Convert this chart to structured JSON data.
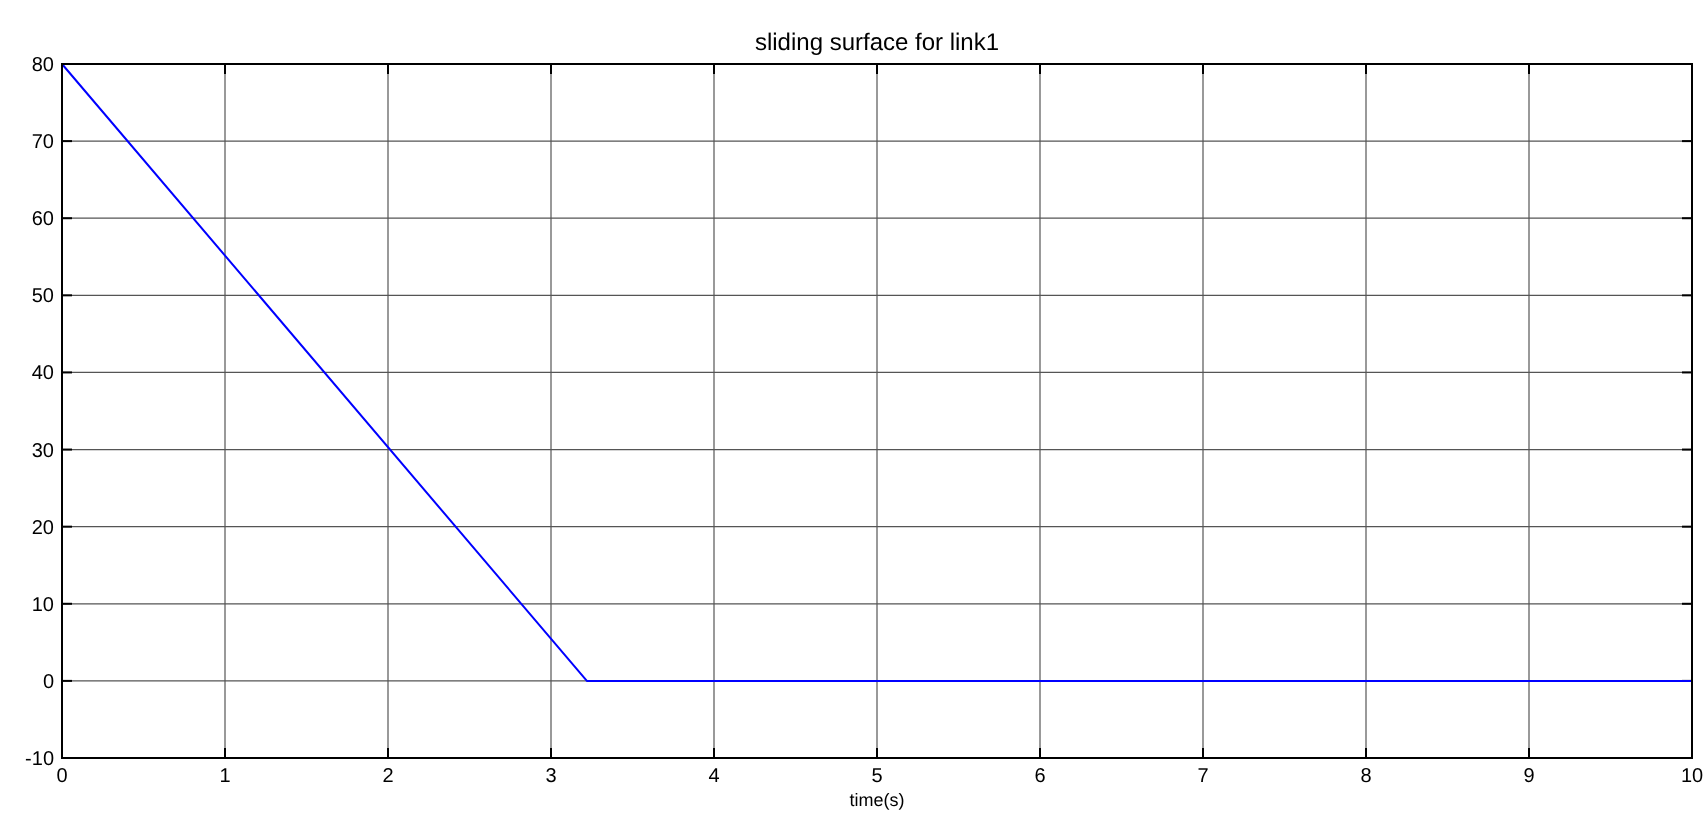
{
  "chart_data": {
    "type": "line",
    "title": "sliding surface for link1",
    "xlabel": "time(s)",
    "x": [
      0,
      3.22,
      10
    ],
    "series": [
      {
        "color": "#0000ff",
        "values": [
          80,
          0,
          0
        ]
      }
    ],
    "xlim": [
      0,
      10
    ],
    "xticks": [
      0,
      1,
      2,
      3,
      4,
      5,
      6,
      7,
      8,
      9,
      10
    ],
    "ylim": [
      -10,
      80
    ],
    "yticks": [
      -10,
      0,
      10,
      20,
      30,
      40,
      50,
      60,
      70,
      80
    ],
    "grid": true,
    "line_style": "solid"
  }
}
